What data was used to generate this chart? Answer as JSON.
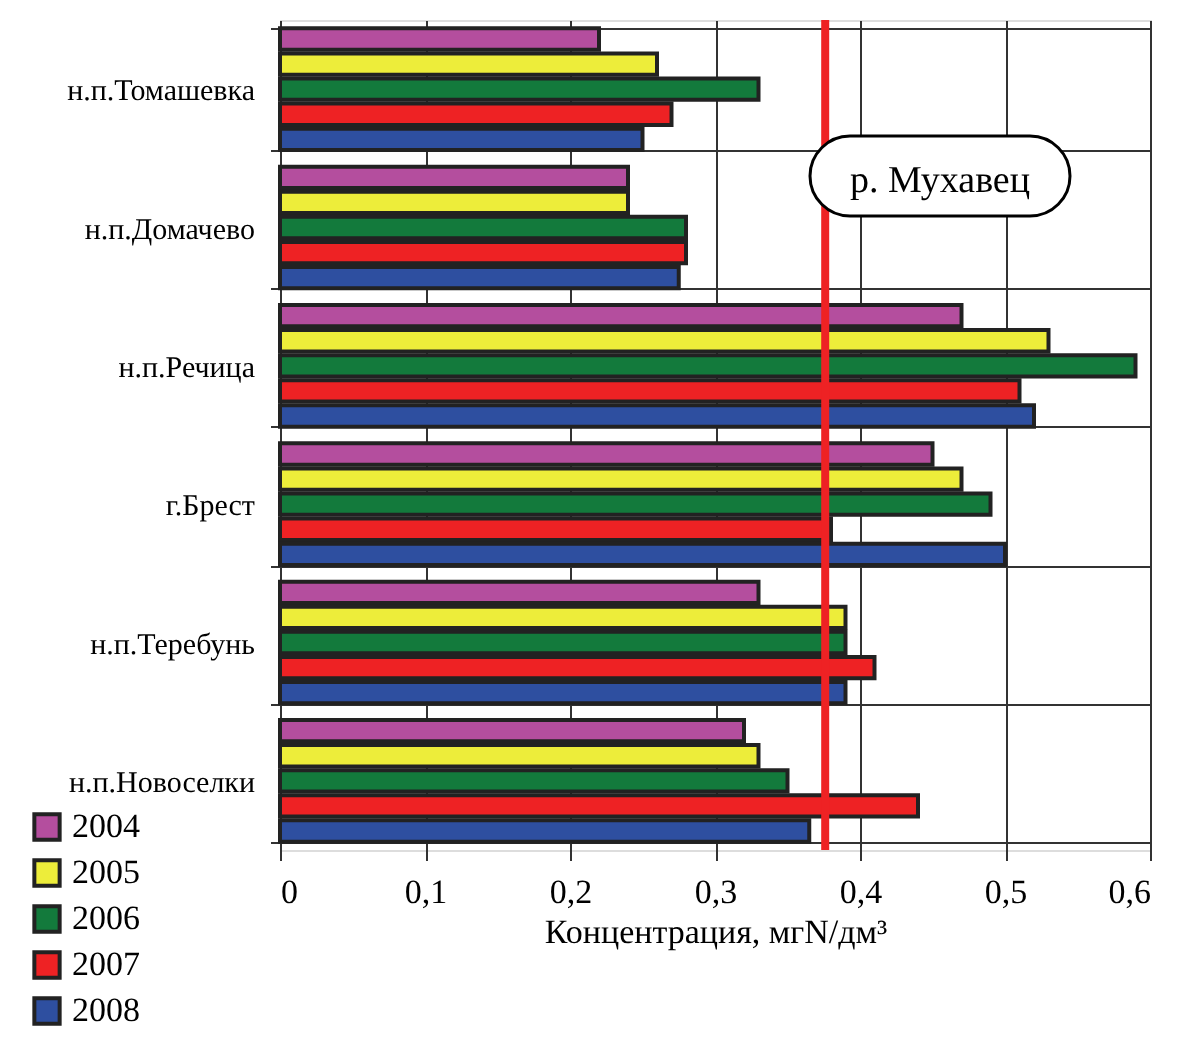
{
  "chart_data": {
    "type": "bar",
    "orientation": "horizontal",
    "categories": [
      "н.п.Томашевка",
      "н.п.Домачево",
      "н.п.Речица",
      "г.Брест",
      "н.п.Теребунь",
      "н.п.Новоселки"
    ],
    "series": [
      {
        "name": "2004",
        "color": "#b44e9e",
        "values": [
          0.22,
          0.24,
          0.47,
          0.45,
          0.33,
          0.32
        ]
      },
      {
        "name": "2005",
        "color": "#eded3a",
        "values": [
          0.26,
          0.24,
          0.53,
          0.47,
          0.39,
          0.33
        ]
      },
      {
        "name": "2006",
        "color": "#137a3c",
        "values": [
          0.33,
          0.28,
          0.59,
          0.49,
          0.39,
          0.35
        ]
      },
      {
        "name": "2007",
        "color": "#ee2224",
        "values": [
          0.27,
          0.28,
          0.51,
          0.38,
          0.41,
          0.44
        ]
      },
      {
        "name": "2008",
        "color": "#2e4fa0",
        "values": [
          0.25,
          0.275,
          0.52,
          0.5,
          0.39,
          0.365
        ]
      }
    ],
    "xlim": [
      0,
      0.6
    ],
    "xticks": [
      0,
      {
        "value": 0.1,
        "label": "0,1"
      },
      {
        "value": 0.2,
        "label": "0,2"
      },
      {
        "value": 0.3,
        "label": "0,3"
      },
      {
        "value": 0.4,
        "label": "0,4"
      },
      {
        "value": 0.5,
        "label": "0,5"
      },
      {
        "value": 0.6,
        "label": "0,6"
      }
    ],
    "xlabel": "Концентрация, мгN/дм³",
    "ref_lines": [
      {
        "axis": "x",
        "value": 0.376,
        "color": "#ee2224"
      }
    ],
    "annotations": [
      "р. Мухавец"
    ],
    "grid": true,
    "legend": "bottom left"
  }
}
